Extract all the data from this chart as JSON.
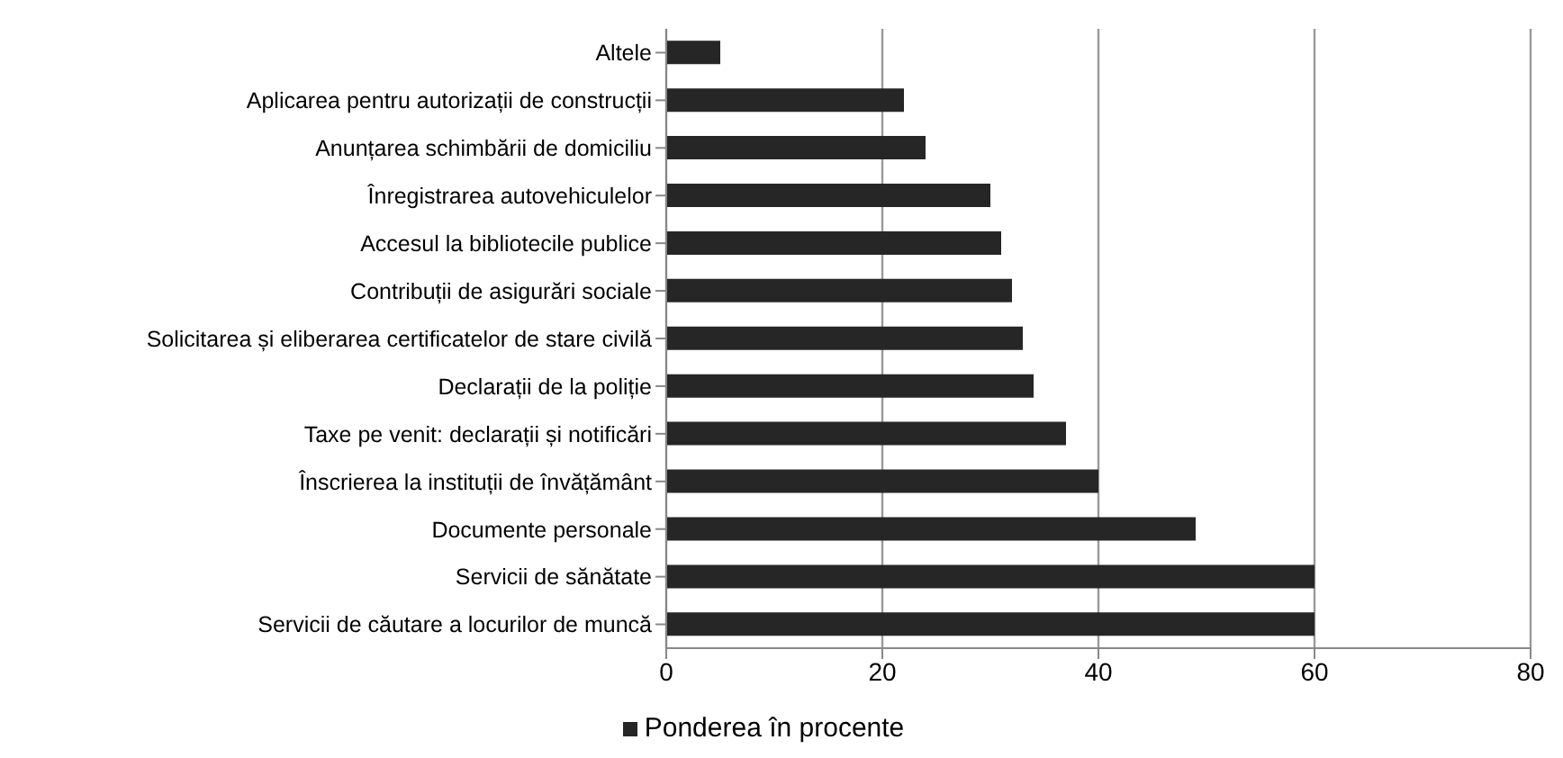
{
  "chart_data": {
    "type": "bar",
    "orientation": "horizontal",
    "categories": [
      "Altele",
      "Aplicarea pentru autorizații de construcții",
      "Anunțarea schimbării de domiciliu",
      "Înregistrarea autovehiculelor",
      "Accesul la bibliotecile publice",
      "Contribuții de asigurări sociale",
      "Solicitarea și eliberarea certificatelor de stare civilă",
      "Declarații de la poliție",
      "Taxe pe venit: declarații și notificări",
      "Înscrierea la instituții de învățământ",
      "Documente personale",
      "Servicii de sănătate",
      "Servicii de căutare a locurilor de muncă"
    ],
    "series": [
      {
        "name": "Ponderea în procente",
        "color": "#262626",
        "values": [
          5,
          22,
          24,
          30,
          31,
          32,
          33,
          34,
          37,
          40,
          49,
          60,
          60
        ]
      }
    ],
    "xlim": [
      0,
      80
    ],
    "xticks": [
      0,
      20,
      40,
      60,
      80
    ],
    "grid": "x",
    "legend": "bottom"
  }
}
